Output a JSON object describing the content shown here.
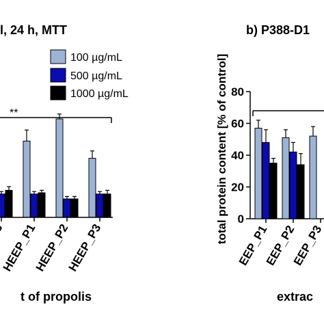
{
  "panels": [
    {
      "title": "l, 24 h, MTT",
      "xlabel": "t of propolis",
      "legend": [
        {
          "label": "100 µg/mL",
          "color": "#9db3d6"
        },
        {
          "label": "500 µg/mL",
          "color": "#0b0bb0"
        },
        {
          "label": "1000 µg/mL",
          "color": "#000000"
        }
      ],
      "significance": "**"
    },
    {
      "title": "b) P388-D1",
      "ylabel": "total protein content [% of control]",
      "xlabel": "extrac"
    }
  ],
  "chart_data": [
    {
      "type": "bar",
      "categories": [
        "P3",
        "HEEP_P1",
        "HEEP_P2",
        "HEEP_P3"
      ],
      "series": [
        {
          "name": "100 µg/mL",
          "values": [
            null,
            62,
            80,
            48
          ],
          "errors": [
            null,
            9,
            4,
            6
          ]
        },
        {
          "name": "500 µg/mL",
          "values": [
            19,
            19,
            15,
            19
          ],
          "errors": [
            2,
            2,
            2,
            2
          ]
        },
        {
          "name": "1000 µg/mL",
          "values": [
            22,
            20,
            15,
            19
          ],
          "errors": [
            3,
            2,
            2,
            3
          ]
        }
      ],
      "title": "l, 24 h, MTT",
      "xlabel": "t of propolis",
      "ylim": [
        0,
        110
      ],
      "legend_position": "top-right",
      "annotation": "**"
    },
    {
      "type": "bar",
      "categories": [
        "EEP_P1",
        "EEP_P2",
        "EEP_P3"
      ],
      "series": [
        {
          "name": "100 µg/mL",
          "values": [
            57,
            51,
            52
          ],
          "errors": [
            5,
            5,
            6
          ]
        },
        {
          "name": "500 µg/mL",
          "values": [
            48,
            42,
            null
          ],
          "errors": [
            8,
            6,
            null
          ]
        },
        {
          "name": "1000 µg/mL",
          "values": [
            35,
            34,
            null
          ],
          "errors": [
            3,
            7,
            null
          ]
        }
      ],
      "title": "b) P388-D1",
      "ylabel": "total protein content [% of control]",
      "xlabel": "extrac",
      "ylim": [
        0,
        80
      ],
      "yticks": [
        0,
        20,
        40,
        60,
        80
      ],
      "grid": false
    }
  ]
}
